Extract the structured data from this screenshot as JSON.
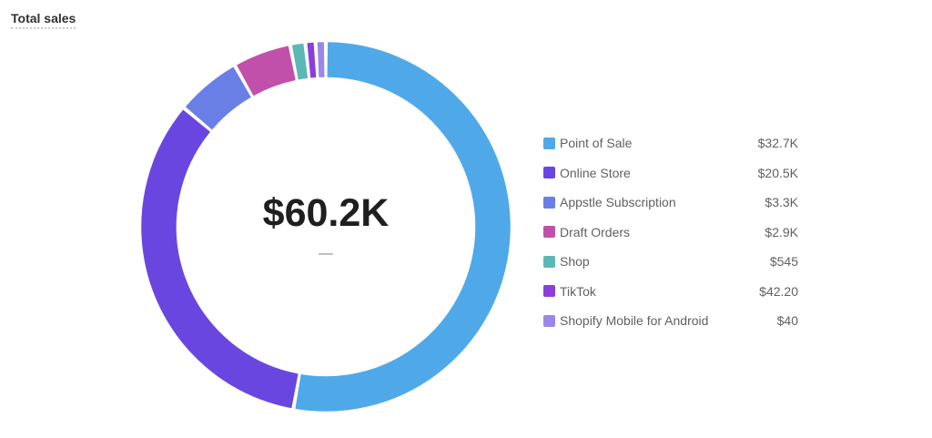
{
  "title": "Total sales",
  "chart_data": {
    "type": "pie",
    "title": "Total sales",
    "center_value": "$60.2K",
    "center_sub": "—",
    "legend_position": "right",
    "slices": [
      {
        "label": "Point of Sale",
        "value": 32700,
        "display": "$32.7K",
        "color": "#4fa9e8"
      },
      {
        "label": "Online Store",
        "value": 20500,
        "display": "$20.5K",
        "color": "#6a46e0"
      },
      {
        "label": "Appstle Subscription",
        "value": 3300,
        "display": "$3.3K",
        "color": "#6a7fe6"
      },
      {
        "label": "Draft Orders",
        "value": 2900,
        "display": "$2.9K",
        "color": "#c150ab"
      },
      {
        "label": "Shop",
        "value": 545,
        "display": "$545",
        "color": "#5cb8b5"
      },
      {
        "label": "TikTok",
        "value": 42.2,
        "display": "$42.20",
        "color": "#8a3fdb"
      },
      {
        "label": "Shopify Mobile for Android",
        "value": 40,
        "display": "$40",
        "color": "#9b87ec"
      }
    ]
  }
}
